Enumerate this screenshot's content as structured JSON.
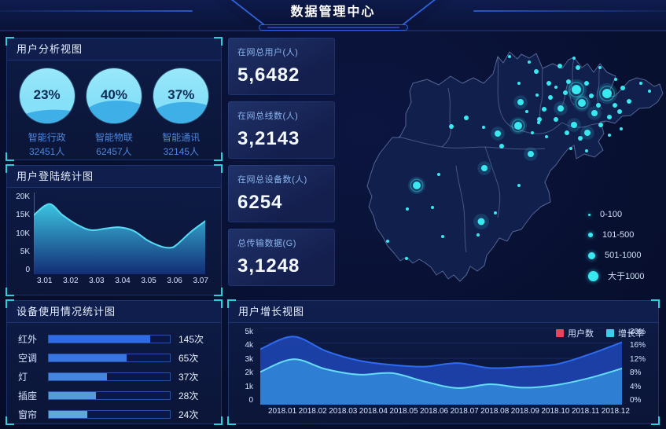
{
  "header": {
    "title": "数据管理中心"
  },
  "panels": {
    "user_analysis": {
      "title": "用户分析视图",
      "gauges": [
        {
          "percent": "23%",
          "value": 23,
          "label": "智能行政",
          "count": "32451人"
        },
        {
          "percent": "40%",
          "value": 40,
          "label": "智能物联",
          "count": "62457人"
        },
        {
          "percent": "37%",
          "value": 37,
          "label": "智能通讯",
          "count": "32145人"
        }
      ]
    },
    "login_stats": {
      "title": "用户登陆统计图"
    },
    "device_usage": {
      "title": "设备使用情况统计图"
    },
    "user_growth": {
      "title": "用户增长视图",
      "legend": [
        {
          "label": "用户数",
          "color": "#e8445a"
        },
        {
          "label": "增长率",
          "color": "#3bcdea"
        }
      ]
    }
  },
  "stats": {
    "cards": [
      {
        "label": "在网总用户(人)",
        "value": "5,6482"
      },
      {
        "label": "在网总线数(人)",
        "value": "3,2143"
      },
      {
        "label": "在网总设备数(人)",
        "value": "6254"
      },
      {
        "label": "总传输数据(G)",
        "value": "3,1248"
      }
    ]
  },
  "map": {
    "dot_color": "#38e9f2",
    "legend": [
      {
        "label": "0-100",
        "size": 3
      },
      {
        "label": "101-500",
        "size": 6
      },
      {
        "label": "501-1000",
        "size": 9
      },
      {
        "label": "大于1000",
        "size": 13
      }
    ],
    "points": [
      [
        303,
        70,
        6
      ],
      [
        342,
        75,
        6
      ],
      [
        310,
        87,
        5
      ],
      [
        229,
        116,
        5
      ],
      [
        100,
        192,
        5
      ],
      [
        182,
        238,
        4.5
      ],
      [
        232,
        86,
        4
      ],
      [
        317,
        125,
        4
      ],
      [
        186,
        170,
        4
      ],
      [
        203,
        126,
        4
      ],
      [
        245,
        152,
        4
      ],
      [
        300,
        115,
        4
      ],
      [
        326,
        100,
        4
      ],
      [
        283,
        94,
        4
      ],
      [
        163,
        106,
        3
      ],
      [
        144,
        117,
        3
      ],
      [
        208,
        142,
        3
      ],
      [
        252,
        47,
        3
      ],
      [
        282,
        40,
        3
      ],
      [
        293,
        60,
        3
      ],
      [
        305,
        42,
        3
      ],
      [
        316,
        62,
        3
      ],
      [
        322,
        78,
        3
      ],
      [
        331,
        90,
        3
      ],
      [
        352,
        90,
        3
      ],
      [
        362,
        68,
        3
      ],
      [
        289,
        74,
        3
      ],
      [
        270,
        80,
        3
      ],
      [
        262,
        95,
        3
      ],
      [
        277,
        108,
        3
      ],
      [
        291,
        125,
        3
      ],
      [
        308,
        132,
        3
      ],
      [
        334,
        115,
        3
      ],
      [
        345,
        105,
        3
      ],
      [
        358,
        98,
        3
      ],
      [
        370,
        85,
        3
      ],
      [
        268,
        62,
        3
      ],
      [
        256,
        108,
        3
      ],
      [
        230,
        62,
        2
      ],
      [
        243,
        35,
        2
      ],
      [
        218,
        28,
        2
      ],
      [
        300,
        30,
        2
      ],
      [
        333,
        42,
        2
      ],
      [
        353,
        57,
        2
      ],
      [
        385,
        62,
        2
      ],
      [
        396,
        72,
        2
      ],
      [
        128,
        178,
        2
      ],
      [
        120,
        220,
        2
      ],
      [
        88,
        222,
        2
      ],
      [
        63,
        263,
        2
      ],
      [
        87,
        285,
        2
      ],
      [
        133,
        257,
        2
      ],
      [
        178,
        255,
        2
      ],
      [
        200,
        227,
        2
      ],
      [
        230,
        192,
        2
      ],
      [
        185,
        118,
        2
      ],
      [
        255,
        112,
        2
      ],
      [
        277,
        67,
        2
      ],
      [
        253,
        77,
        2
      ],
      [
        240,
        98,
        2
      ],
      [
        265,
        130,
        2
      ],
      [
        247,
        125,
        2
      ],
      [
        345,
        128,
        2
      ],
      [
        360,
        120,
        2
      ],
      [
        296,
        145,
        2
      ],
      [
        316,
        148,
        2
      ]
    ]
  },
  "chart_data": [
    {
      "id": "login_chart",
      "type": "area",
      "title": "用户登陆统计图",
      "x_tick_labels": [
        "3.01",
        "3.02",
        "3.03",
        "3.04",
        "3.05",
        "3.06",
        "3.07"
      ],
      "y_tick_labels": [
        "0",
        "5K",
        "10K",
        "15K",
        "20K"
      ],
      "ylim": [
        0,
        20000
      ],
      "x": [
        0,
        0.09,
        0.167,
        0.25,
        0.333,
        0.42,
        0.5,
        0.583,
        0.667,
        0.75,
        0.8,
        0.833,
        0.92,
        1
      ],
      "values": [
        14500,
        17200,
        14500,
        12200,
        10800,
        11200,
        11500,
        10600,
        8200,
        6700,
        6500,
        7200,
        10500,
        13000
      ],
      "line_color": "#58dcf5",
      "grid": false
    },
    {
      "id": "device_bars",
      "type": "bar",
      "title": "设备使用情况统计图",
      "categories": [
        "红外",
        "空调",
        "灯",
        "插座",
        "窗帘"
      ],
      "values": [
        145,
        65,
        37,
        28,
        24
      ],
      "unit": "次",
      "value_labels": [
        "145次",
        "65次",
        "37次",
        "28次",
        "24次"
      ],
      "bar_widths_pct": [
        84,
        64,
        48,
        39,
        32
      ],
      "bar_colors": [
        "#2e6be4",
        "#3677e2",
        "#4486de",
        "#549bda",
        "#5ea8da"
      ]
    },
    {
      "id": "growth_chart",
      "type": "area",
      "title": "用户增长视图",
      "categories": [
        "2018.01",
        "2018.02",
        "2018.03",
        "2018.04",
        "2018.05",
        "2018.06",
        "2018.07",
        "2018.08",
        "2018.09",
        "2018.10",
        "2018.11",
        "2018.12"
      ],
      "y_left_ticks": [
        "0",
        "1k",
        "2k",
        "3k",
        "4k",
        "5k"
      ],
      "y_right_ticks": [
        "0%",
        "4%",
        "8%",
        "12%",
        "16%",
        "20%"
      ],
      "ylim_left": [
        0,
        5000
      ],
      "ylim_right": [
        0,
        20
      ],
      "grid": true,
      "legend_position": "top-right",
      "series": [
        {
          "name": "用户数",
          "axis": "left",
          "color": "#2e6bf0",
          "fill": "#1d43ae",
          "values": [
            3600,
            4420,
            3480,
            2860,
            2580,
            2470,
            2700,
            2380,
            2460,
            2620,
            3260,
            4050
          ]
        },
        {
          "name": "增长率",
          "axis": "right",
          "color": "#66dcf8",
          "fill": "#2f83d6",
          "values": [
            8.5,
            11.8,
            9.2,
            7.8,
            8.2,
            6.0,
            4.3,
            5.3,
            4.4,
            5.1,
            6.9,
            9.4
          ]
        }
      ]
    }
  ]
}
